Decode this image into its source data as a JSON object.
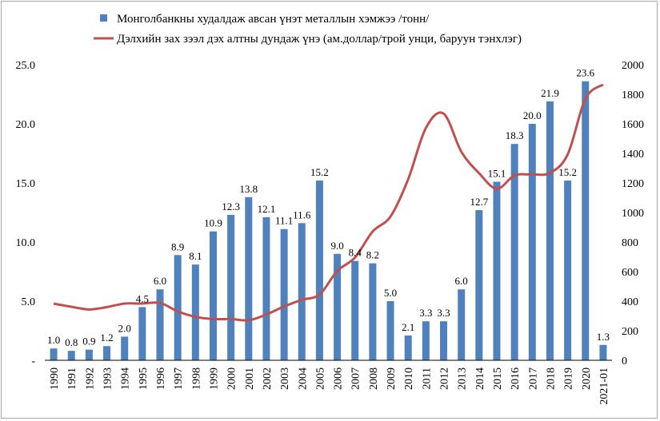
{
  "chart_data": {
    "type": "bar",
    "categories": [
      "1990",
      "1991",
      "1992",
      "1993",
      "1994",
      "1995",
      "1996",
      "1997",
      "1998",
      "1999",
      "2000",
      "2001",
      "2002",
      "2003",
      "2004",
      "2005",
      "2006",
      "2007",
      "2008",
      "2009",
      "2010",
      "2011",
      "2012",
      "2013",
      "2014",
      "2015",
      "2016",
      "2017",
      "2018",
      "2019",
      "2020",
      "2021-01"
    ],
    "series": [
      {
        "name": "Монголбанкны худалдаж авсан үнэт металлын хэмжээ /тонн/",
        "type": "bar",
        "axis": "left",
        "color": "#4f81bd",
        "values": [
          1.0,
          0.8,
          0.9,
          1.2,
          2.0,
          4.5,
          6.0,
          8.9,
          8.1,
          10.9,
          12.3,
          13.8,
          12.1,
          11.1,
          11.6,
          15.2,
          9.0,
          8.4,
          8.2,
          5.0,
          2.1,
          3.3,
          3.3,
          6.0,
          12.7,
          15.1,
          18.3,
          20.0,
          21.9,
          15.2,
          23.6,
          1.3
        ],
        "labels": [
          "1.0",
          "0.8",
          "0.9",
          "1.2",
          "2.0",
          "4.5",
          "6.0",
          "8.9",
          "8.1",
          "10.9",
          "12.3",
          "13.8",
          "12.1",
          "11.1",
          "11.6",
          "15.2",
          "9.0",
          "8.4",
          "8.2",
          "5.0",
          "2.1",
          "3.3",
          "3.3",
          "6.0",
          "12.7",
          "15.1",
          "18.3",
          "20.0",
          "21.9",
          "15.2",
          "23.6",
          "1.3"
        ]
      },
      {
        "name": "Дэлхийн зах зээл дэх алтны дундаж үнэ (ам.доллар/трой унци, баруун тэнхлэг)",
        "type": "line",
        "axis": "right",
        "color": "#c0504d",
        "values": [
          383,
          362,
          344,
          360,
          384,
          384,
          388,
          331,
          294,
          279,
          279,
          271,
          310,
          364,
          409,
          445,
          604,
          695,
          872,
          972,
          1225,
          1572,
          1669,
          1411,
          1266,
          1160,
          1251,
          1257,
          1268,
          1393,
          1770,
          1866
        ]
      }
    ],
    "y_left": {
      "ylim": [
        0,
        25
      ],
      "ticks": [
        "-",
        "5.0",
        "10.0",
        "15.0",
        "20.0",
        "25.0"
      ]
    },
    "y_right": {
      "ylim": [
        0,
        2000
      ],
      "ticks": [
        "0",
        "200",
        "400",
        "600",
        "800",
        "1000",
        "1200",
        "1400",
        "1600",
        "1800",
        "2000"
      ]
    },
    "legend_position": "top",
    "grid": false
  }
}
